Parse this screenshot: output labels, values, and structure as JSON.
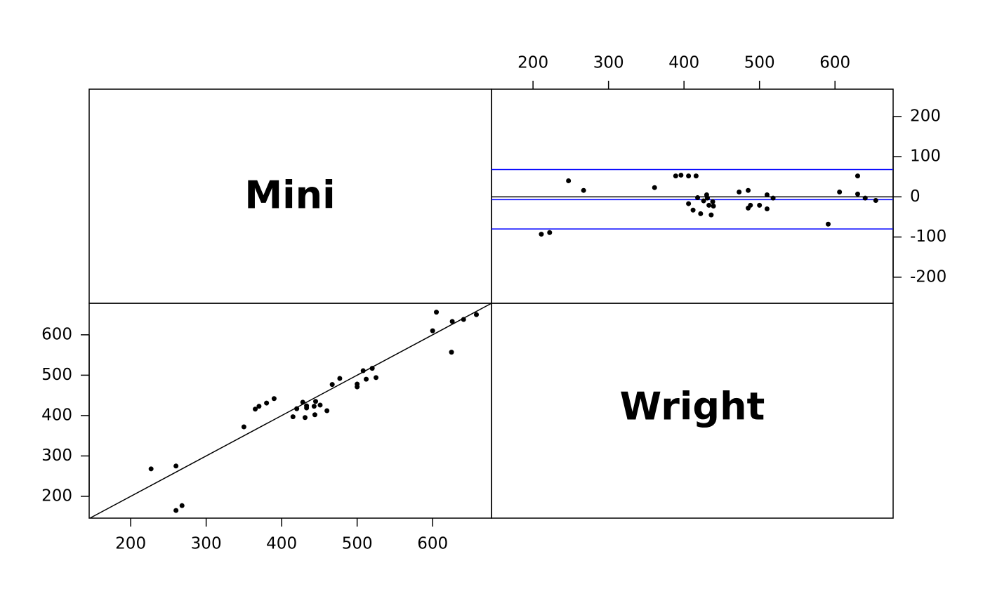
{
  "chart_data": [
    {
      "type": "scatter",
      "xlabel": "Mini",
      "ylabel": "Wright",
      "identity_line": true,
      "color": "#000000",
      "xlim": [
        145,
        678
      ],
      "ylim": [
        146,
        678
      ],
      "xticks": [
        200,
        300,
        400,
        500,
        600
      ],
      "yticks": [
        200,
        300,
        400,
        500,
        600
      ],
      "x": [
        227,
        260,
        260,
        268,
        350,
        365,
        370,
        380,
        390,
        415,
        420,
        428,
        431,
        433,
        433,
        443,
        444,
        445,
        451,
        460,
        467,
        477,
        500,
        500,
        508,
        512,
        520,
        525,
        600,
        605,
        625,
        626,
        641,
        658
      ],
      "values": [
        268,
        275,
        165,
        177,
        372,
        416,
        423,
        431,
        442,
        397,
        417,
        433,
        395,
        424,
        419,
        423,
        402,
        435,
        426,
        412,
        477,
        492,
        471,
        478,
        511,
        490,
        517,
        494,
        610,
        656,
        557,
        633,
        638,
        650
      ]
    },
    {
      "type": "scatter",
      "color": "#000000",
      "xlim": [
        145,
        677
      ],
      "ylim": [
        -265,
        268
      ],
      "xticks": [
        200,
        300,
        400,
        500,
        600
      ],
      "yticks": [
        -200,
        -100,
        0,
        100,
        200
      ],
      "hlines": [
        {
          "value": 0,
          "color": "#000000"
        },
        {
          "value": 68,
          "color": "#0000ff"
        },
        {
          "value": -7,
          "color": "#0000ff"
        },
        {
          "value": -80,
          "color": "#0000ff"
        }
      ],
      "x": [
        211,
        222,
        247,
        267,
        361,
        389,
        396,
        406,
        406,
        412,
        416,
        418,
        422,
        426,
        430,
        431,
        433,
        436,
        438,
        439,
        473,
        485,
        485,
        488,
        500,
        510,
        510,
        518,
        591,
        606,
        630,
        630,
        640,
        654
      ],
      "values": [
        -93,
        -89,
        40,
        16,
        23,
        52,
        54,
        52,
        -17,
        -33,
        52,
        -2,
        -42,
        -10,
        5,
        -3,
        -21,
        -45,
        -12,
        -23,
        12,
        16,
        -28,
        -21,
        -21,
        5,
        -30,
        -3,
        -68,
        12,
        52,
        7,
        -3,
        -9
      ]
    }
  ]
}
